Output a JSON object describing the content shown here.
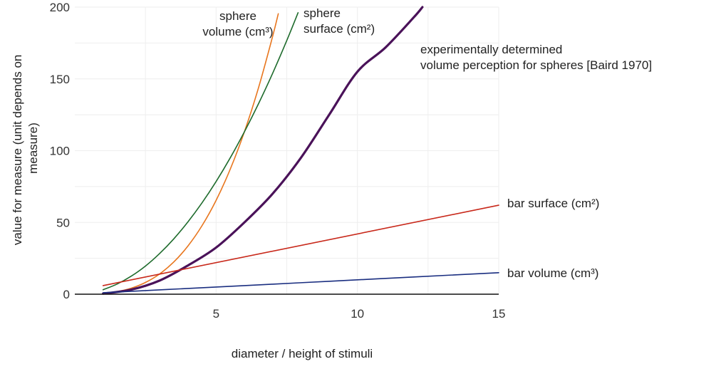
{
  "chart_data": {
    "type": "line",
    "xlabel": "diameter / height of stimuli",
    "ylabel_lines": [
      "value for measure (unit depends on",
      "measure)"
    ],
    "xlim": [
      0,
      15
    ],
    "ylim": [
      0,
      200
    ],
    "x_ticks": [
      5,
      10,
      15
    ],
    "y_ticks": [
      0,
      50,
      100,
      150,
      200
    ],
    "grid": true,
    "series": [
      {
        "name_lines": [
          "sphere",
          "volume (cm³)"
        ],
        "color": "#e8761e",
        "x": [
          1,
          1.5,
          2,
          2.5,
          3,
          3.5,
          4,
          4.5,
          5,
          5.5,
          6,
          6.5,
          7,
          7.2
        ],
        "y": [
          0.5,
          1.8,
          4.2,
          8.2,
          14.1,
          22.4,
          33.5,
          47.7,
          65.4,
          87.1,
          113.1,
          143.8,
          179.6,
          195.4
        ]
      },
      {
        "name_lines": [
          "sphere",
          "surface (cm²)"
        ],
        "color": "#1e6b2c",
        "x": [
          1,
          1.5,
          2,
          2.5,
          3,
          3.5,
          4,
          4.5,
          5,
          5.5,
          6,
          6.5,
          7,
          7.5,
          7.9
        ],
        "y": [
          3.1,
          7.1,
          12.6,
          19.6,
          28.3,
          38.5,
          50.3,
          63.6,
          78.5,
          95.0,
          113.1,
          132.7,
          153.9,
          176.7,
          196.1
        ]
      },
      {
        "name_lines": [
          "experimentally determined",
          "volume perception for spheres [Baird 1970]"
        ],
        "color": "#4a1259",
        "x": [
          1,
          2,
          3,
          4,
          5,
          6,
          7,
          8,
          9,
          10,
          11,
          12,
          12.3
        ],
        "y": [
          0.4,
          3.2,
          9.5,
          20.0,
          32.5,
          50.0,
          70.0,
          95.0,
          125.0,
          155.0,
          172.0,
          193.0,
          200.0
        ]
      },
      {
        "name_lines": [
          "bar surface (cm²)"
        ],
        "color": "#c8281a",
        "x": [
          1,
          15
        ],
        "y": [
          6,
          62
        ]
      },
      {
        "name_lines": [
          "bar volume (cm³)"
        ],
        "color": "#1a2e80",
        "x": [
          1,
          2,
          4,
          6,
          8,
          10,
          12,
          15
        ],
        "y": [
          1,
          2,
          4,
          6,
          8,
          10,
          12,
          15
        ]
      }
    ]
  },
  "colors": {
    "axis": "#111111",
    "grid": "#eeeeee",
    "text": "#222222"
  }
}
